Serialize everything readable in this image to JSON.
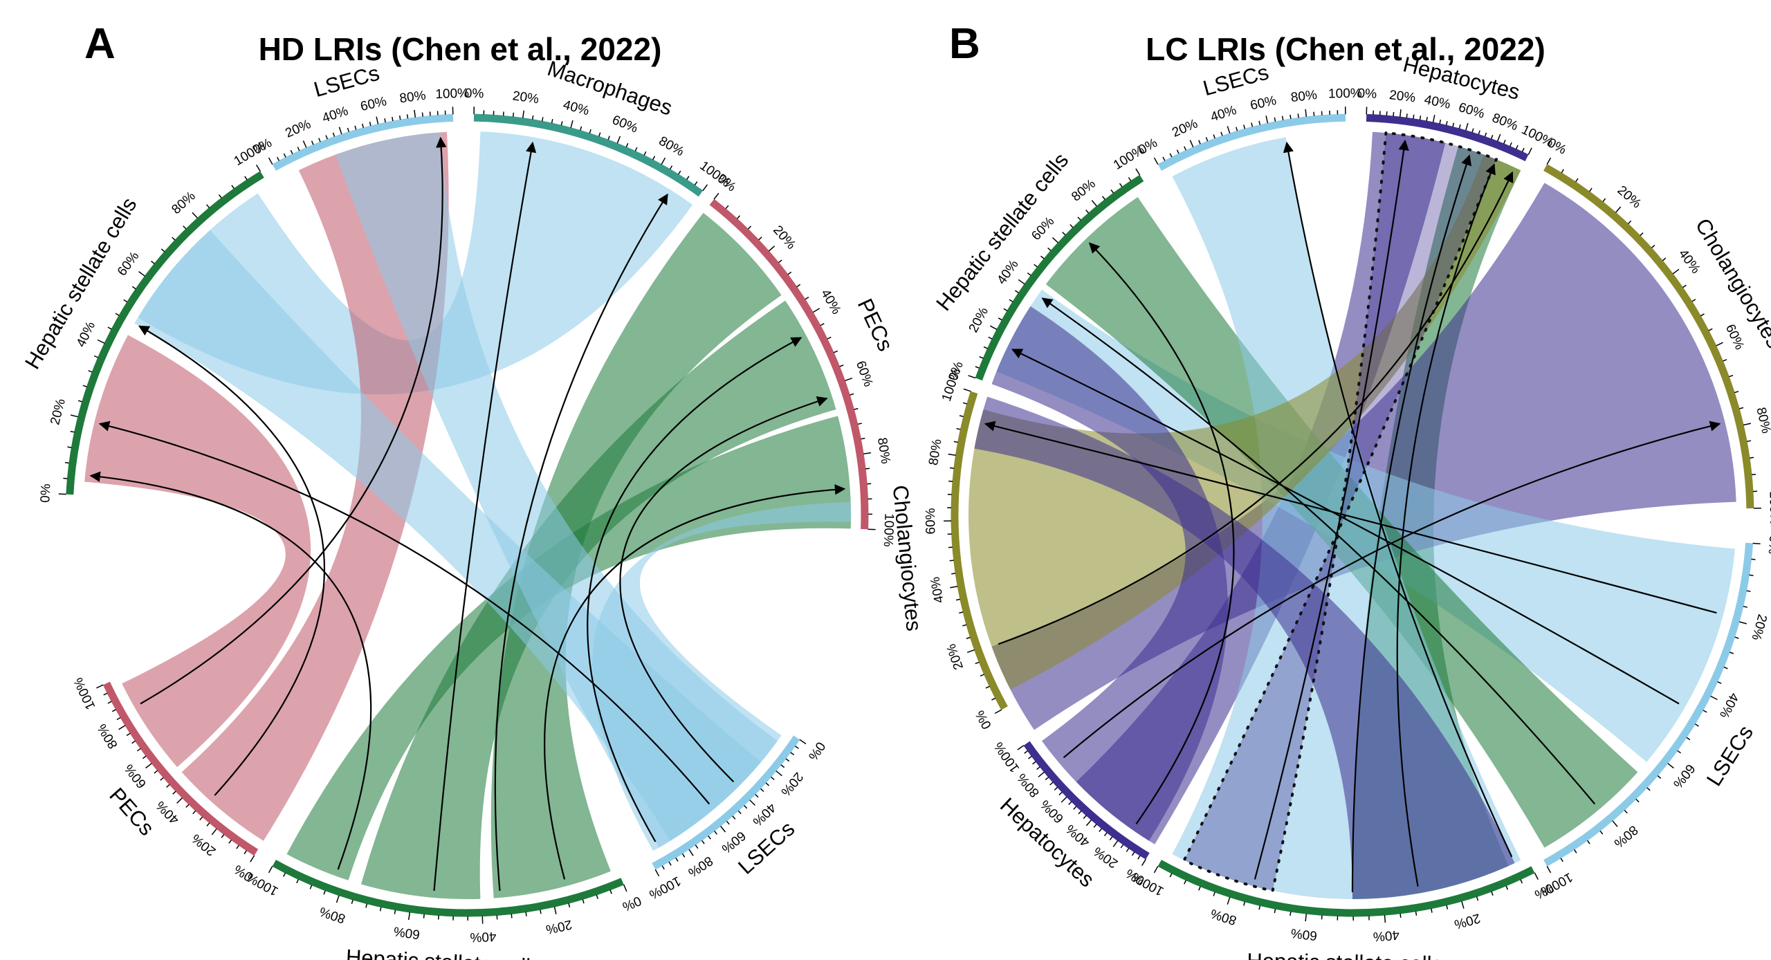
{
  "panels": [
    {
      "letter": "A",
      "title": "HD LRIs (Chen et al., 2022)",
      "colors": {
        "Macrophages": "#3a9b8a",
        "PECs": "#c0586a",
        "LSECs": "#8ccbe8",
        "Hepatic stellate cells": "#1d7a3a"
      },
      "sectors": [
        {
          "label": "Macrophages",
          "color": "#3a9b8a",
          "ticks": [
            "0%",
            "20%",
            "40%",
            "60%",
            "80%",
            "100%"
          ]
        },
        {
          "label": "PECs",
          "color": "#c0586a",
          "ticks": [
            "0%",
            "20%",
            "40%",
            "60%",
            "80%",
            "100%"
          ]
        },
        {
          "label": "LSECs",
          "color": "#8ccbe8",
          "ticks": [
            "0%",
            "20%",
            "40%",
            "60%",
            "80%",
            "100%"
          ]
        },
        {
          "label": "Hepatic stellate cells",
          "color": "#1d7a3a",
          "ticks": [
            "0%",
            "20%",
            "40%",
            "60%",
            "80%",
            "100%"
          ]
        },
        {
          "label": "PECs",
          "color": "#c0586a",
          "ticks": [
            "0%",
            "20%",
            "40%",
            "60%",
            "80%",
            "100%"
          ]
        },
        {
          "label": "Hepatic stellate cells",
          "color": "#1d7a3a",
          "ticks": [
            "0%",
            "20%",
            "40%",
            "60%",
            "80%",
            "100%"
          ]
        },
        {
          "label": "LSECs",
          "color": "#8ccbe8",
          "ticks": [
            "0%",
            "20%",
            "40%",
            "60%",
            "80%",
            "100%"
          ]
        }
      ]
    },
    {
      "letter": "B",
      "title": "LC LRIs (Chen et al., 2022)",
      "colors": {
        "Hepatocytes": "#3d2f8f",
        "Cholangiocytes": "#8a8a2a",
        "LSECs": "#8ccbe8",
        "Hepatic stellate cells": "#1d7a3a"
      },
      "sectors": [
        {
          "label": "Hepatocytes",
          "color": "#3d2f8f",
          "ticks": [
            "0%",
            "20%",
            "40%",
            "60%",
            "80%",
            "100%"
          ]
        },
        {
          "label": "Cholangiocytes",
          "color": "#8a8a2a",
          "ticks": [
            "0%",
            "20%",
            "40%",
            "60%",
            "80%",
            "100%"
          ]
        },
        {
          "label": "LSECs",
          "color": "#8ccbe8",
          "ticks": [
            "0%",
            "20%",
            "40%",
            "60%",
            "80%",
            "100%"
          ]
        },
        {
          "label": "Hepatic stellate cells",
          "color": "#1d7a3a",
          "ticks": [
            "0%",
            "20%",
            "40%",
            "60%",
            "80%",
            "100%"
          ]
        },
        {
          "label": "Hepatocytes",
          "color": "#3d2f8f",
          "ticks": [
            "0%",
            "20%",
            "40%",
            "60%",
            "80%",
            "100%"
          ]
        },
        {
          "label": "Cholangiocytes",
          "color": "#8a8a2a",
          "ticks": [
            "0%",
            "20%",
            "40%",
            "60%",
            "80%",
            "100%"
          ]
        },
        {
          "label": "Hepatic stellate cells",
          "color": "#1d7a3a",
          "ticks": [
            "0%",
            "20%",
            "40%",
            "60%",
            "80%",
            "100%"
          ]
        },
        {
          "label": "LSECs",
          "color": "#8ccbe8",
          "ticks": [
            "0%",
            "20%",
            "40%",
            "60%",
            "80%",
            "100%"
          ]
        }
      ]
    }
  ]
}
